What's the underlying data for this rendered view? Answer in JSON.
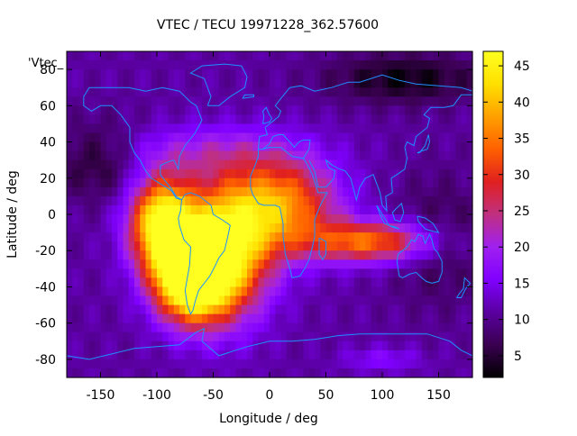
{
  "chart_data": {
    "type": "heatmap",
    "title": "VTEC / TECU 19971228_362.57600",
    "xlabel": "Longitude / deg",
    "ylabel": "Latitude / deg",
    "series_label": "'Vtec_",
    "xlim": [
      -180,
      180
    ],
    "ylim": [
      -90,
      90
    ],
    "x_ticks": [
      -150,
      -100,
      -50,
      0,
      50,
      100,
      150
    ],
    "y_ticks": [
      -80,
      -60,
      -40,
      -20,
      0,
      20,
      40,
      60,
      80
    ],
    "colorbar_range": [
      2,
      47
    ],
    "colorbar_ticks": [
      5,
      10,
      15,
      20,
      25,
      30,
      35,
      40,
      45
    ],
    "palette": [
      "#000000",
      "#3a0050",
      "#5a00a0",
      "#8000ff",
      "#a020f0",
      "#c03080",
      "#e02020",
      "#ff6000",
      "#ffa000",
      "#ffe000",
      "#ffff20"
    ],
    "coastline_color": "#1e90ff",
    "background_level": 11,
    "features": [
      {
        "lon": -70,
        "lat": -35,
        "value": 46,
        "slon": 22,
        "slat": 16
      },
      {
        "lon": -95,
        "lat": -5,
        "value": 40,
        "slon": 20,
        "slat": 18
      },
      {
        "lon": -40,
        "lat": -20,
        "value": 36,
        "slon": 28,
        "slat": 25
      },
      {
        "lon": 10,
        "lat": 5,
        "value": 28,
        "slon": 35,
        "slat": 18
      },
      {
        "lon": 90,
        "lat": -15,
        "value": 26,
        "slon": 40,
        "slat": 8
      },
      {
        "lon": -60,
        "lat": 35,
        "value": 10,
        "slon": 60,
        "slat": 10
      },
      {
        "lon": 120,
        "lat": 75,
        "value": -8,
        "slon": 50,
        "slat": 10
      },
      {
        "lon": -150,
        "lat": 30,
        "value": -7,
        "slon": 30,
        "slat": 15
      },
      {
        "lon": 150,
        "lat": -15,
        "value": -5,
        "slon": 30,
        "slat": 25
      },
      {
        "lon": 100,
        "lat": -80,
        "value": 8,
        "slon": 25,
        "slat": 5
      }
    ]
  }
}
